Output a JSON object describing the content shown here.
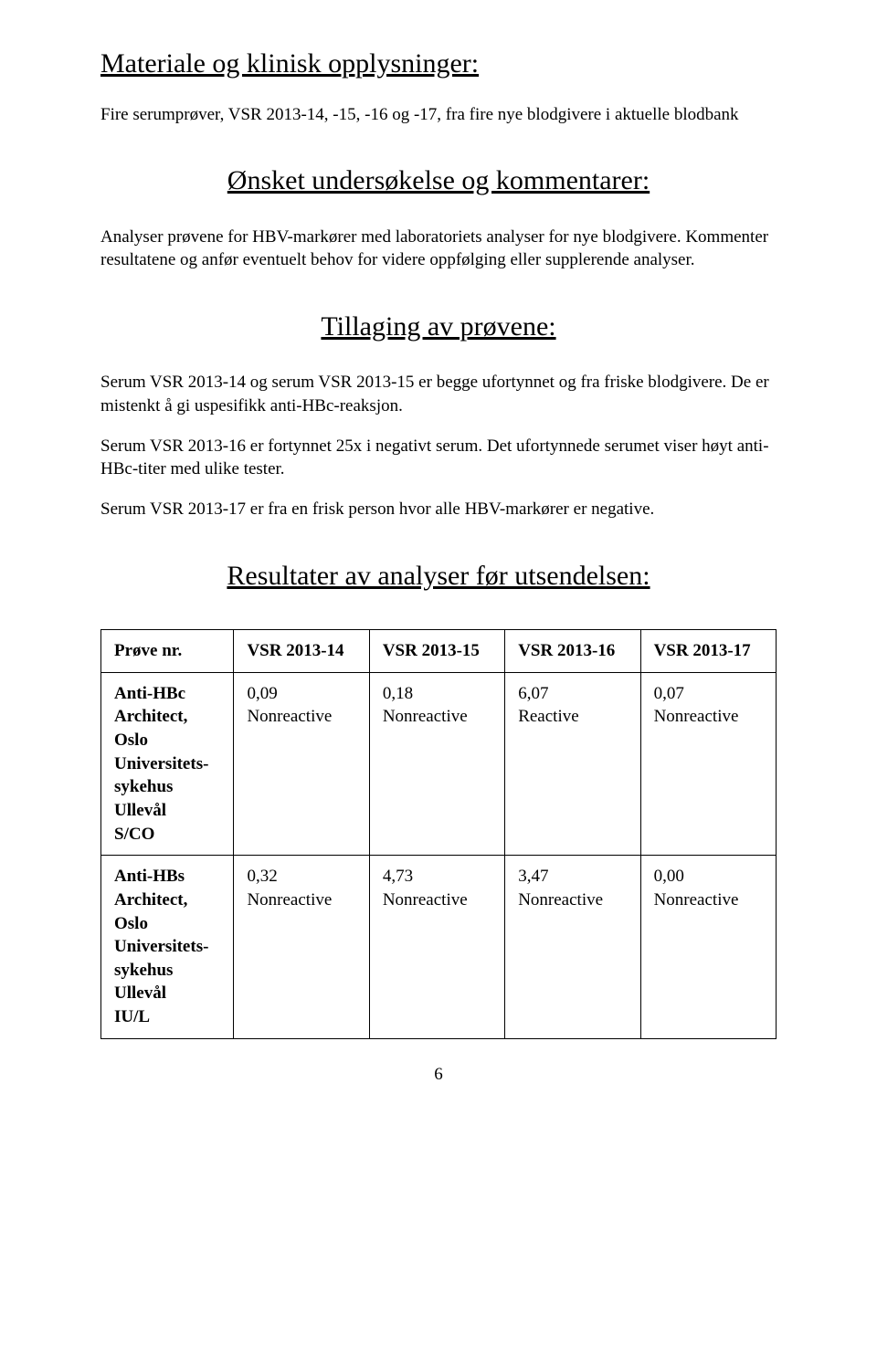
{
  "doc": {
    "h_materiale": "Materiale og klinisk opplysninger:",
    "p_materiale": "Fire serumprøver, VSR 2013-14, -15, -16 og -17, fra fire nye blodgivere i aktuelle blodbank",
    "h_onsket": "Ønsket undersøkelse og kommentarer:",
    "p_onsket": "Analyser prøvene for HBV-markører med laboratoriets analyser for nye blodgivere. Kommenter resultatene og anfør eventuelt behov for videre oppfølging eller supplerende analyser.",
    "h_tillaging": "Tillaging av prøvene:",
    "p_tillaging_1": "Serum VSR 2013-14 og serum VSR 2013-15 er begge ufortynnet og fra friske blodgivere. De er mistenkt å gi uspesifikk anti-HBc-reaksjon.",
    "p_tillaging_2": "Serum VSR 2013-16 er fortynnet 25x i negativt serum. Det ufortynnede serumet viser høyt anti-HBc-titer med ulike tester.",
    "p_tillaging_3": "Serum VSR 2013-17 er fra en frisk person hvor alle HBV-markører er negative.",
    "h_resultater": "Resultater av analyser før utsendelsen:",
    "page_number": "6"
  },
  "table": {
    "columns": [
      "Prøve nr.",
      "VSR 2013-14",
      "VSR 2013-15",
      "VSR 2013-16",
      "VSR 2013-17"
    ],
    "rows": [
      {
        "header": "Anti-HBc Architect, Oslo Universitets-sykehus Ullevål S/CO",
        "cells": [
          {
            "value": "0,09",
            "status": "Nonreactive"
          },
          {
            "value": "0,18",
            "status": "Nonreactive"
          },
          {
            "value": "6,07",
            "status": "Reactive"
          },
          {
            "value": "0,07",
            "status": "Nonreactive"
          }
        ]
      },
      {
        "header": "Anti-HBs Architect, Oslo Universitets-sykehus Ullevål IU/L",
        "cells": [
          {
            "value": "0,32",
            "status": "Nonreactive"
          },
          {
            "value": "4,73",
            "status": "Nonreactive"
          },
          {
            "value": "3,47",
            "status": "Nonreactive"
          },
          {
            "value": "0,00",
            "status": "Nonreactive"
          }
        ]
      }
    ],
    "border_color": "#000000",
    "background_color": "#ffffff"
  }
}
